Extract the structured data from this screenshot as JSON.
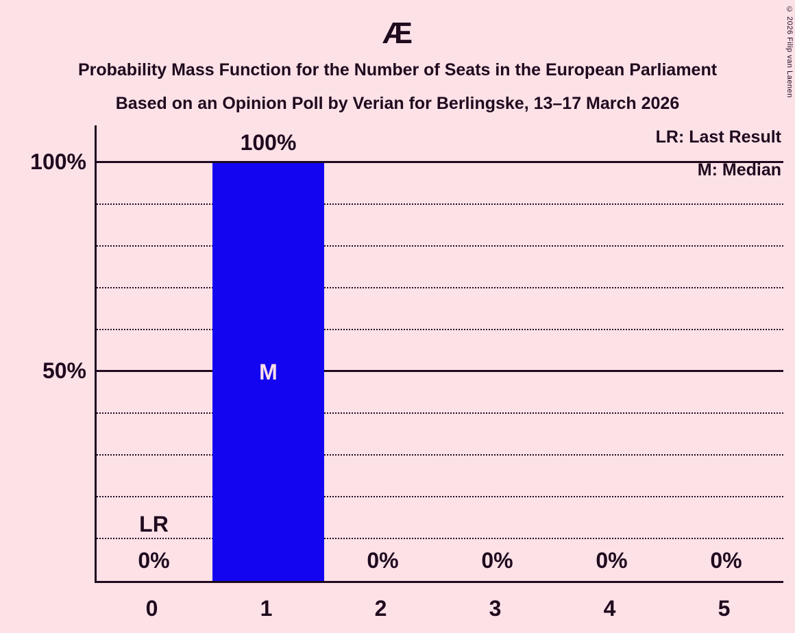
{
  "title": "Æ",
  "subtitle": "Probability Mass Function for the Number of Seats in the European Parliament",
  "subtitle2": "Based on an Opinion Poll by Verian for Berlingske, 13–17 March 2026",
  "copyright": "© 2026 Filip van Laenen",
  "legend": {
    "last_result": "LR: Last Result",
    "median": "M: Median"
  },
  "colors": {
    "background": "#fce1e7",
    "bar": "#1405f0",
    "text": "#1f0a1e",
    "bar_label": "#fce1e7"
  },
  "chart_data": {
    "type": "bar",
    "title": "Æ",
    "categories": [
      "0",
      "1",
      "2",
      "3",
      "4",
      "5"
    ],
    "values": [
      0,
      100,
      0,
      0,
      0,
      0
    ],
    "bar_labels": [
      "0%",
      "100%",
      "0%",
      "0%",
      "0%",
      "0%"
    ],
    "yticks": [
      {
        "label": "100%",
        "value": 100
      },
      {
        "label": "50%",
        "value": 50
      }
    ],
    "ylim": [
      0,
      100
    ],
    "grid": "dotted every 10%, solid lines at 50% and 100%",
    "legend_position": "top-right",
    "annotations": {
      "lr_label": "LR",
      "lr_category_index": 0,
      "median_label": "M",
      "median_category_index": 1
    }
  }
}
